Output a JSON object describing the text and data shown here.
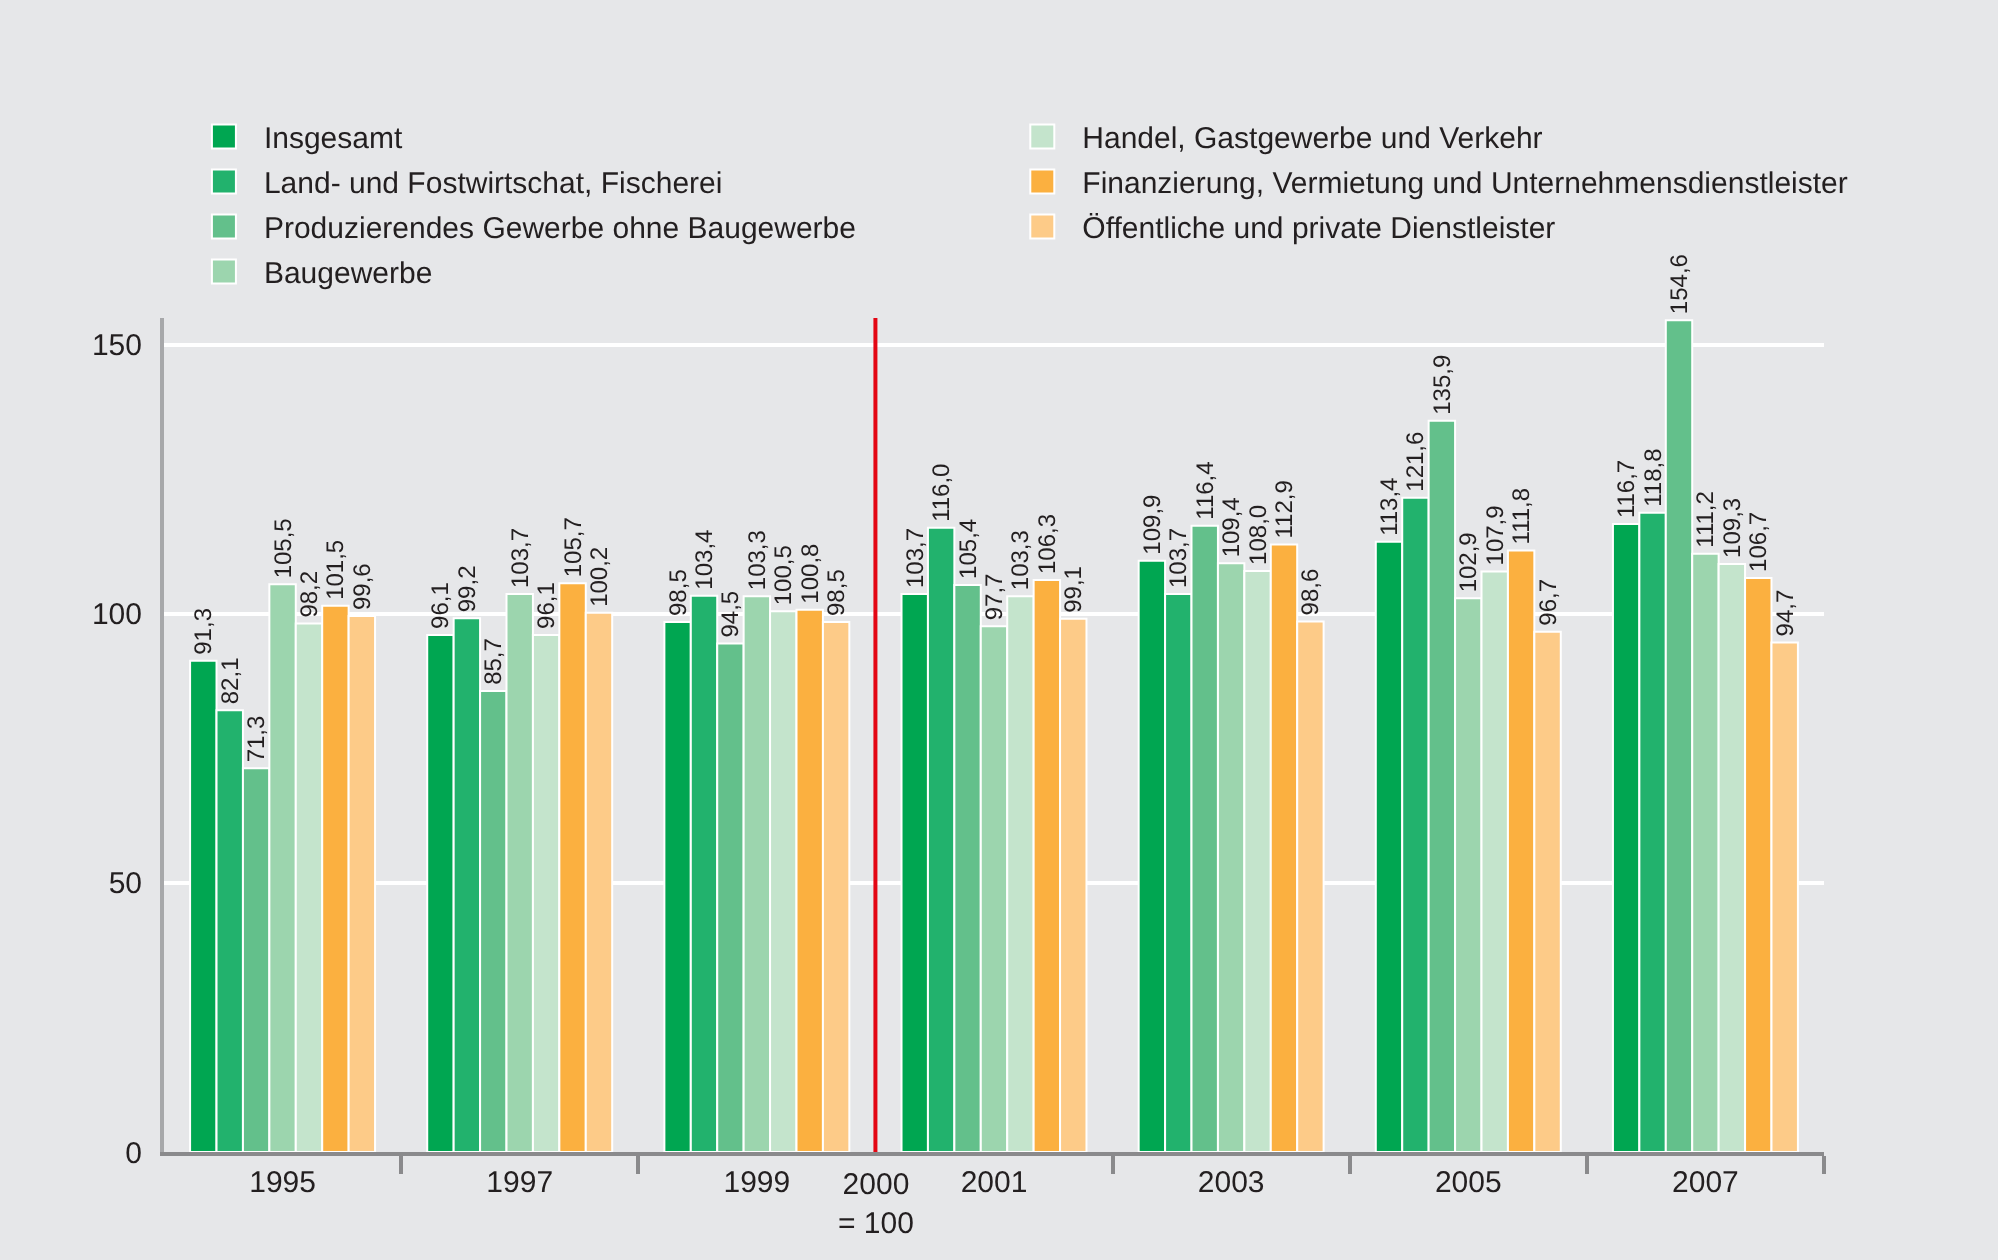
{
  "chart_data": {
    "type": "bar",
    "x": [
      1995,
      1997,
      1999,
      2001,
      2003,
      2005,
      2007
    ],
    "xlim": [
      1994,
      2008
    ],
    "xticks": [
      1995,
      {
        "value": 1996,
        "label": null
      },
      1997,
      {
        "value": 1998,
        "label": null
      },
      1999,
      2001,
      {
        "value": 2002,
        "label": null
      },
      2003,
      {
        "value": 2004,
        "label": null
      },
      2005,
      {
        "value": 2006,
        "label": null
      },
      2007,
      {
        "value": 2008,
        "label": null
      }
    ],
    "ylim": [
      0,
      155
    ],
    "yticks": [
      0,
      50,
      100,
      150
    ],
    "grid": "y",
    "legend": "top",
    "ref_lines": [
      {
        "axis": "x",
        "value": 2000,
        "label": "2000\n= 100",
        "color": "#e30613"
      }
    ],
    "series": [
      {
        "name": "Insgesamt",
        "color": "#00a651",
        "values": [
          91.3,
          96.1,
          98.5,
          103.7,
          109.9,
          113.4,
          116.7
        ],
        "value_labels": [
          "91,3",
          "96,1",
          "98,5",
          "103,7",
          "109,9",
          "113,4",
          "116,7"
        ]
      },
      {
        "name": "Land- und Fostwirtschat, Fischerei",
        "color": "#22b26d",
        "values": [
          82.1,
          99.2,
          103.4,
          116.0,
          103.7,
          121.6,
          118.8
        ],
        "value_labels": [
          "82,1",
          "99,2",
          "103,4",
          "116,0",
          "103,7",
          "121,6",
          "118,8"
        ]
      },
      {
        "name": "Produzierendes Gewerbe ohne Baugewerbe",
        "color": "#63c08b",
        "values": [
          71.3,
          85.7,
          94.5,
          105.4,
          116.4,
          135.9,
          154.6
        ],
        "value_labels": [
          "71,3",
          "85,7",
          "94,5",
          "105,4",
          "116,4",
          "135,9",
          "154,6"
        ]
      },
      {
        "name": "Baugewerbe",
        "color": "#9cd5ae",
        "values": [
          105.5,
          103.7,
          103.3,
          97.7,
          109.4,
          102.9,
          111.2
        ],
        "value_labels": [
          "105,5",
          "103,7",
          "103,3",
          "97,7",
          "109,4",
          "102,9",
          "111,2"
        ]
      },
      {
        "name": "Handel, Gastgewerbe und Verkehr",
        "color": "#c4e4cc",
        "values": [
          98.2,
          96.1,
          100.5,
          103.3,
          108.0,
          107.9,
          109.3
        ],
        "value_labels": [
          "98,2",
          "96,1",
          "100,5",
          "103,3",
          "108,0",
          "107,9",
          "109,3"
        ]
      },
      {
        "name": "Finanzierung, Vermietung und Unternehmensdienstleister",
        "color": "#fbb040",
        "values": [
          101.5,
          105.7,
          100.8,
          106.3,
          112.9,
          111.8,
          106.7
        ],
        "value_labels": [
          "101,5",
          "105,7",
          "100,8",
          "106,3",
          "112,9",
          "111,8",
          "106,7"
        ]
      },
      {
        "name": "Öffentliche und private Dienstleister",
        "color": "#fdcb88",
        "values": [
          99.6,
          100.2,
          98.5,
          99.1,
          98.6,
          96.7,
          94.7
        ],
        "value_labels": [
          "99,6",
          "100,2",
          "98,5",
          "99,1",
          "98,6",
          "96,7",
          "94,7"
        ]
      }
    ]
  }
}
